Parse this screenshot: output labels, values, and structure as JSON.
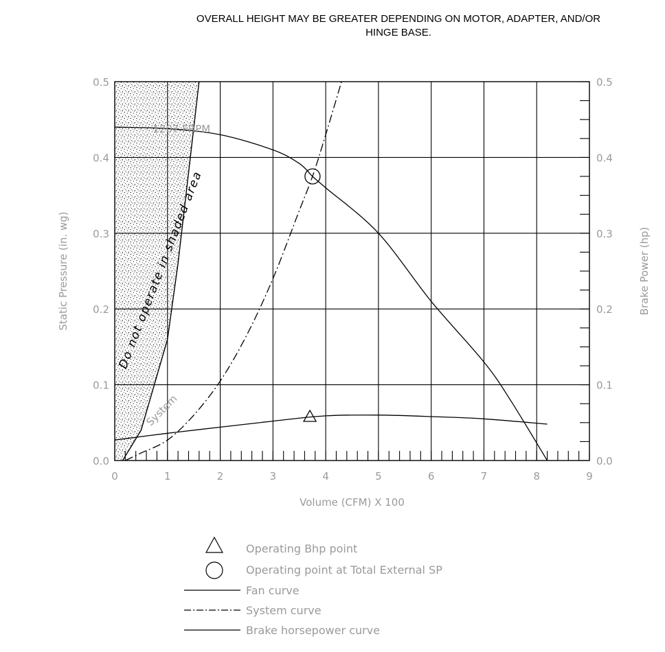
{
  "header": {
    "note_line1": "OVERALL HEIGHT MAY BE GREATER DEPENDING ON MOTOR, ADAPTER, AND/OR",
    "note_line2": "HINGE BASE."
  },
  "chart_data": {
    "type": "line",
    "xlabel": "Volume (CFM) X 100",
    "ylabel_left": "Static Pressure (in. wg)",
    "ylabel_right": "Brake Power (hp)",
    "xlim": [
      0,
      9
    ],
    "ylim_left": [
      0,
      0.5
    ],
    "ylim_right": [
      0,
      0.5
    ],
    "x_ticks": [
      "0",
      "1",
      "2",
      "3",
      "4",
      "5",
      "6",
      "7",
      "8",
      "9"
    ],
    "y_ticks_left": [
      "0.0",
      "0.1",
      "0.2",
      "0.3",
      "0.4",
      "0.5"
    ],
    "y_ticks_right": [
      "0.0",
      "0.1",
      "0.2",
      "0.3",
      "0.4",
      "0.5"
    ],
    "grid": true,
    "shaded_region_label": "Do not operate in shaded area",
    "fan_speed_label": "1207 FRPM",
    "system_label": "System",
    "series": [
      {
        "name": "Fan curve",
        "style": "solid",
        "axis": "left",
        "x": [
          0,
          1,
          2,
          3,
          3.5,
          3.75,
          4,
          5,
          6,
          7,
          7.5,
          8.2
        ],
        "y": [
          0.44,
          0.438,
          0.43,
          0.41,
          0.392,
          0.375,
          0.36,
          0.3,
          0.21,
          0.13,
          0.08,
          0.0
        ]
      },
      {
        "name": "System curve",
        "style": "dash-dot",
        "axis": "left",
        "x": [
          0.2,
          0.5,
          1,
          1.5,
          2,
          2.5,
          3,
          3.5,
          3.75,
          4,
          4.3
        ],
        "y": [
          0.0,
          0.01,
          0.027,
          0.06,
          0.105,
          0.165,
          0.24,
          0.33,
          0.375,
          0.43,
          0.5
        ]
      },
      {
        "name": "Brake horsepower curve",
        "style": "solid",
        "axis": "right",
        "x": [
          0,
          1,
          2,
          3,
          4,
          5,
          6,
          7,
          8.2
        ],
        "y": [
          0.027,
          0.036,
          0.044,
          0.052,
          0.059,
          0.06,
          0.058,
          0.055,
          0.048
        ]
      }
    ],
    "shaded_boundary": {
      "x": [
        0.15,
        0.5,
        1,
        1.2,
        1.4,
        1.6
      ],
      "y": [
        0.0,
        0.04,
        0.16,
        0.26,
        0.38,
        0.5
      ]
    },
    "operating_point": {
      "x": 3.75,
      "y": 0.375,
      "marker": "circle"
    },
    "operating_bhp_point": {
      "x": 3.7,
      "y": 0.058,
      "marker": "triangle"
    }
  },
  "legend": {
    "operating_bhp": "Operating Bhp point",
    "operating_point": "Operating point at Total External SP",
    "fan_curve": "Fan curve",
    "system_curve": "System curve",
    "bhp_curve": "Brake horsepower curve"
  }
}
